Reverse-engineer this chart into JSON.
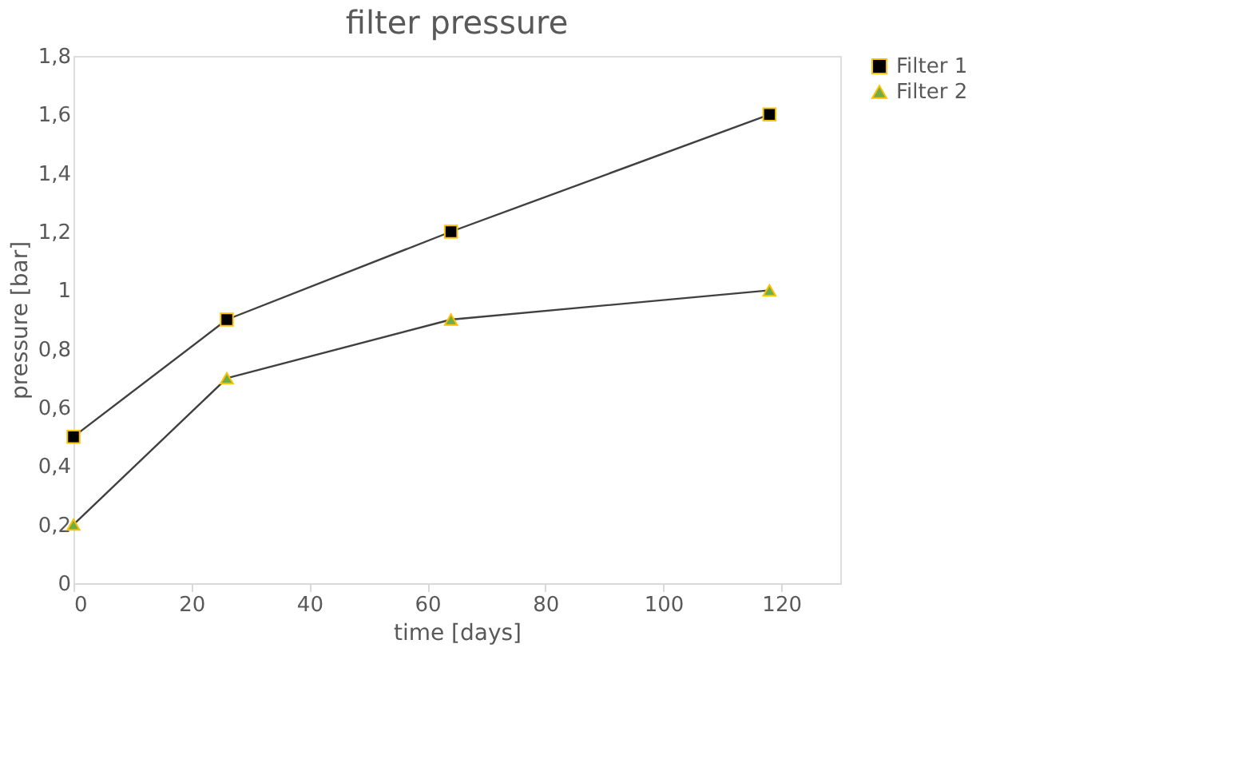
{
  "chart_data": {
    "type": "line",
    "title": "filter pressure",
    "xlabel": "time [days]",
    "ylabel": "pressure [bar]",
    "x": [
      0,
      26,
      64,
      118
    ],
    "series": [
      {
        "name": "Filter 1",
        "color": "#000000",
        "marker": "square",
        "values": [
          0.5,
          0.9,
          1.2,
          1.6
        ]
      },
      {
        "name": "Filter 2",
        "color": "#70ad47",
        "marker": "triangle",
        "values": [
          0.2,
          0.7,
          0.9,
          1.0
        ]
      }
    ],
    "xlim": [
      0,
      130
    ],
    "xticks": [
      0,
      20,
      40,
      60,
      80,
      100,
      120
    ],
    "ylim": [
      0,
      1.8
    ],
    "yticks": [
      0,
      {
        "value": 0.2,
        "label": "0,2"
      },
      {
        "value": 0.4,
        "label": "0,4"
      },
      {
        "value": 0.6,
        "label": "0,6"
      },
      {
        "value": 0.8,
        "label": "0,8"
      },
      1,
      {
        "value": 1.2,
        "label": "1,2"
      },
      {
        "value": 1.4,
        "label": "1,4"
      },
      {
        "value": 1.6,
        "label": "1,6"
      },
      {
        "value": 1.8,
        "label": "1,8"
      }
    ],
    "grid": false,
    "legend": "right",
    "line_style": "solid"
  }
}
